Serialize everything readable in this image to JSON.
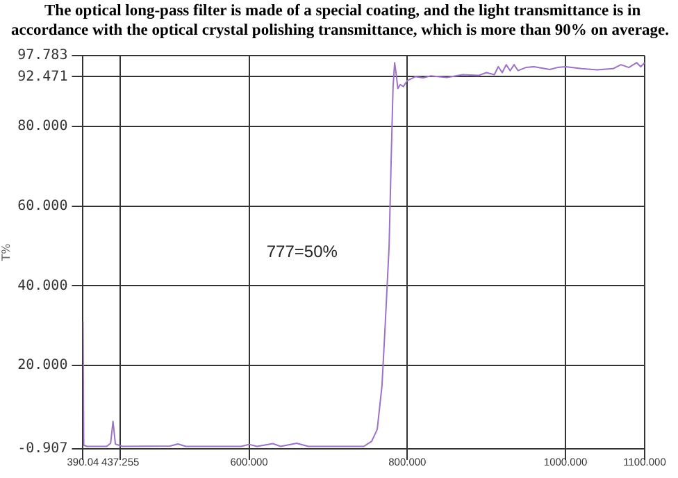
{
  "chart_data": {
    "type": "line",
    "title": "The optical long-pass filter is made of a special coating, and the light transmittance is in accordance with the optical crystal polishing transmittance, which is more than 90% on average.",
    "ylabel": "T%",
    "annotations": [
      "777=50%"
    ],
    "series": [
      {
        "color": "#9b72c8",
        "x": [
          390.04,
          391,
          395,
          420,
          425,
          428,
          431,
          440,
          500,
          510,
          520,
          590,
          600,
          610,
          630,
          640,
          660,
          675,
          745,
          755,
          762,
          768,
          772,
          777,
          780,
          782,
          784,
          786,
          788,
          791,
          795,
          800,
          810,
          820,
          830,
          850,
          870,
          890,
          900,
          910,
          915,
          920,
          925,
          930,
          935,
          940,
          950,
          960,
          980,
          990,
          1000,
          1020,
          1040,
          1060,
          1070,
          1080,
          1090,
          1095,
          1100
        ],
        "values": [
          31,
          0,
          -0.3,
          -0.3,
          0.5,
          6,
          0.3,
          -0.3,
          -0.2,
          0.3,
          -0.3,
          -0.3,
          0.2,
          -0.3,
          0.4,
          -0.3,
          0.5,
          -0.3,
          -0.3,
          1,
          4,
          15,
          30,
          50,
          75,
          90,
          96,
          93,
          89.5,
          90.5,
          90,
          91.5,
          92.5,
          92.2,
          92.7,
          92.3,
          93,
          92.8,
          93.5,
          93,
          95,
          93.5,
          95.5,
          94,
          95.5,
          94,
          94.8,
          95,
          94.3,
          94.8,
          95,
          94.5,
          94.2,
          94.5,
          95.5,
          94.8,
          96,
          95,
          96
        ]
      }
    ],
    "xlim": [
      390.04,
      1100
    ],
    "xticks": [
      {
        "value": 390.04,
        "label": "390.04"
      },
      {
        "value": 437.255,
        "label": "437.255"
      },
      {
        "value": 600,
        "label": "600.000"
      },
      {
        "value": 800,
        "label": "800.000"
      },
      {
        "value": 1000,
        "label": "1000.000"
      },
      {
        "value": 1100,
        "label": "1100.000"
      }
    ],
    "ylim": [
      -0.907,
      97.783
    ],
    "yticks": [
      {
        "value": -0.907,
        "label": "-0.907"
      },
      {
        "value": 20,
        "label": "20.000"
      },
      {
        "value": 40,
        "label": "40.000"
      },
      {
        "value": 60,
        "label": "60.000"
      },
      {
        "value": 80,
        "label": "80.000"
      },
      {
        "value": 92.471,
        "label": "92.471"
      },
      {
        "value": 97.783,
        "label": "97.783"
      }
    ],
    "grid": true,
    "legend": false,
    "marker": "none",
    "line_style": "solid"
  }
}
